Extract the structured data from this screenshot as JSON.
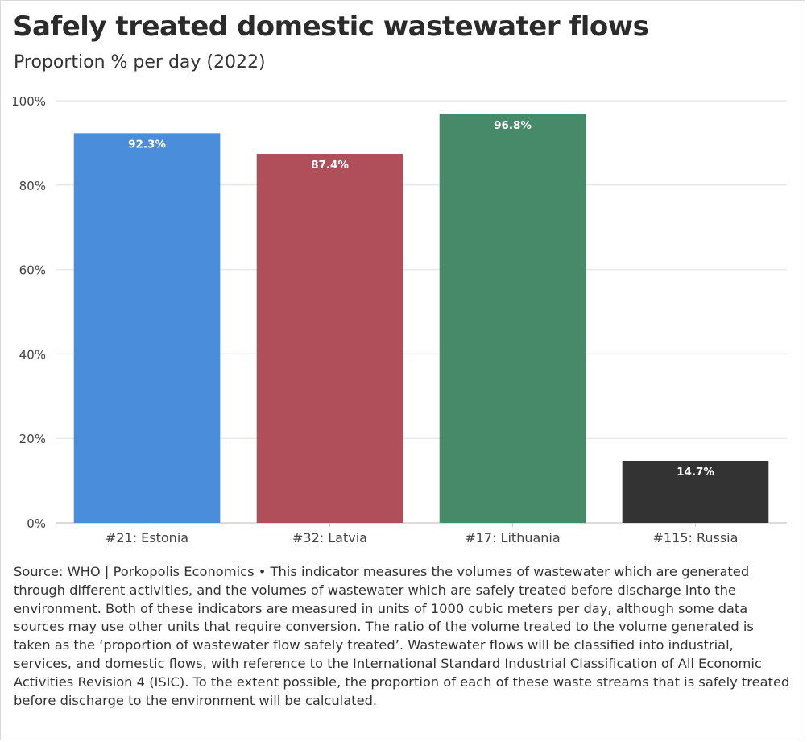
{
  "title": "Safely treated domestic wastewater flows",
  "subtitle": "Proportion % per day (2022)",
  "footer": "Source: WHO | Porkopolis Economics • This indicator measures the volumes of wastewater which are generated through different activities, and the volumes of wastewater which are safely treated before discharge into the environment. Both of these indicators are measured in units of 1000 cubic meters per day, although some data sources may use other units that require conversion. The ratio of the volume treated to the volume generated is taken as the ‘proportion of wastewater flow safely treated’. Wastewater flows will be classified into industrial, services, and domestic flows, with reference to the International Standard Industrial Classification of All Economic Activities Revision 4 (ISIC). To the extent possible, the proportion of each of these waste streams that is safely treated before discharge to the environment will be calculated.",
  "chart_data": {
    "type": "bar",
    "title": "Safely treated domestic wastewater flows",
    "subtitle": "Proportion % per day (2022)",
    "categories": [
      "#21: Estonia",
      "#32: Latvia",
      "#17: Lithuania",
      "#115: Russia"
    ],
    "values": [
      92.3,
      87.4,
      96.8,
      14.7
    ],
    "data_labels": [
      "92.3%",
      "87.4%",
      "96.8%",
      "14.7%"
    ],
    "colors": [
      "#4a8ddb",
      "#b04f5a",
      "#468a6a",
      "#333333"
    ],
    "ylim": [
      0,
      100
    ],
    "yticks": [
      0,
      20,
      40,
      60,
      80,
      100
    ],
    "ytick_labels": [
      "0%",
      "20%",
      "40%",
      "60%",
      "80%",
      "100%"
    ],
    "xlabel": "",
    "ylabel": "",
    "grid": true,
    "legend": false
  }
}
